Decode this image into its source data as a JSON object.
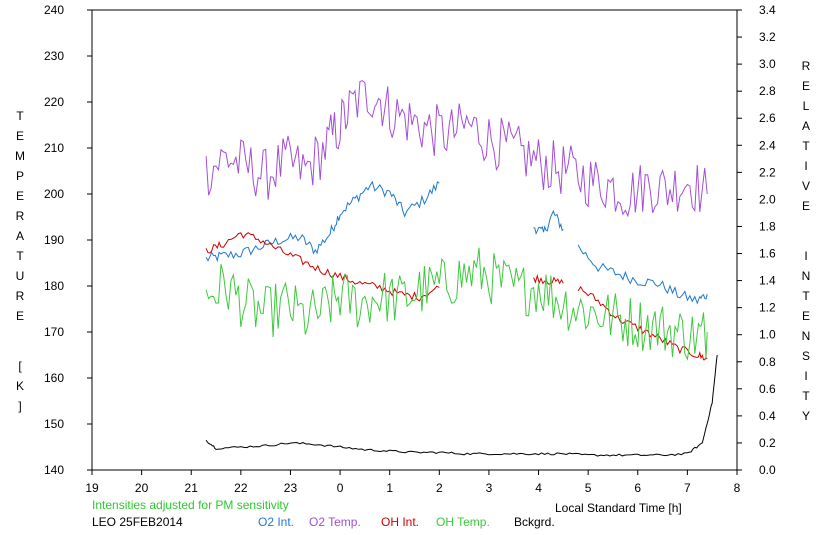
{
  "chart_data": {
    "type": "line",
    "title": "",
    "station_label": "LEO 25FEB2014",
    "note": "Intensities adjusted for PM sensitivity",
    "xlabel": "Local Standard Time [h]",
    "ylabel_left": "TEMPERATURE [K]",
    "ylabel_right": "RELATIVE INTENSITY",
    "x_ticks": [
      "19",
      "20",
      "21",
      "22",
      "23",
      "0",
      "1",
      "2",
      "3",
      "4",
      "5",
      "6",
      "7",
      "8"
    ],
    "y_left_ticks": [
      "140",
      "150",
      "160",
      "170",
      "180",
      "190",
      "200",
      "210",
      "220",
      "230",
      "240"
    ],
    "y_right_ticks": [
      "0.0",
      "0.2",
      "0.4",
      "0.6",
      "0.8",
      "1.0",
      "1.2",
      "1.4",
      "1.6",
      "1.8",
      "2.0",
      "2.2",
      "2.4",
      "2.6",
      "2.8",
      "3.0",
      "3.2",
      "3.4"
    ],
    "xlim": [
      19,
      32
    ],
    "ylim_left": [
      140,
      240
    ],
    "ylim_right": [
      0,
      3.4
    ],
    "grid": false,
    "legend_placement": "bottom",
    "colors": {
      "o2_int": "#1f78d1",
      "o2_temp": "#a24fd6",
      "oh_int": "#d00000",
      "oh_temp": "#3ec83e",
      "bckgrd": "#000000",
      "note": "#2ec82e"
    },
    "series": [
      {
        "name": "O2 Int.",
        "axis": "right",
        "x": [
          21.3,
          21.6,
          22.0,
          22.4,
          22.8,
          23.2,
          23.5,
          23.8,
          24.0,
          24.3,
          24.6,
          25.0,
          25.3,
          25.7,
          26.0
        ],
        "y": [
          1.56,
          1.58,
          1.6,
          1.65,
          1.7,
          1.72,
          1.62,
          1.75,
          1.9,
          2.0,
          2.1,
          2.05,
          1.9,
          2.0,
          2.12
        ],
        "gaps": [
          {
            "x": [
              27.9,
              28.1,
              28.3,
              28.5
            ],
            "y": [
              1.8,
              1.75,
              1.9,
              1.78
            ]
          },
          {
            "x": [
              28.8,
              29.2,
              29.6,
              30.0,
              30.4,
              30.8,
              31.2,
              31.4
            ],
            "y": [
              1.65,
              1.5,
              1.45,
              1.4,
              1.38,
              1.3,
              1.25,
              1.3
            ]
          }
        ]
      },
      {
        "name": "O2 Temp.",
        "axis": "left",
        "x": [
          21.3,
          21.7,
          22.1,
          22.5,
          22.9,
          23.3,
          23.7,
          24.0,
          24.3,
          24.7,
          25.0,
          25.4,
          25.8,
          26.2,
          26.6,
          27.0,
          27.4,
          27.8,
          28.2,
          28.6,
          29.0,
          29.4,
          29.8,
          30.2,
          30.6,
          31.0,
          31.4
        ],
        "y": [
          205,
          208,
          206,
          204,
          207,
          205,
          210,
          215,
          220,
          222,
          218,
          216,
          214,
          213,
          215,
          212,
          210,
          208,
          206,
          205,
          203,
          202,
          200,
          202,
          201,
          203,
          200
        ]
      },
      {
        "name": "OH Int.",
        "axis": "right",
        "x": [
          21.3,
          21.6,
          22.0,
          22.4,
          22.8,
          23.2,
          23.6,
          24.0,
          24.4,
          24.8,
          25.2,
          25.6,
          26.0
        ],
        "y": [
          1.62,
          1.66,
          1.75,
          1.7,
          1.62,
          1.55,
          1.48,
          1.43,
          1.38,
          1.35,
          1.3,
          1.28,
          1.35
        ],
        "gaps": [
          {
            "x": [
              27.9,
              28.2,
              28.5
            ],
            "y": [
              1.42,
              1.4,
              1.38
            ]
          },
          {
            "x": [
              28.8,
              29.2,
              29.6,
              30.0,
              30.4,
              30.8,
              31.2,
              31.4
            ],
            "y": [
              1.35,
              1.25,
              1.12,
              1.05,
              0.98,
              0.9,
              0.85,
              0.82
            ]
          }
        ]
      },
      {
        "name": "OH Temp.",
        "axis": "left",
        "x": [
          21.3,
          21.7,
          22.1,
          22.5,
          22.9,
          23.3,
          23.7,
          24.0,
          24.4,
          24.8,
          25.2,
          25.6,
          26.0,
          26.4,
          26.8,
          27.2,
          27.6,
          28.0,
          28.4,
          28.8,
          29.2,
          29.6,
          30.0,
          30.4,
          30.8,
          31.2,
          31.4
        ],
        "y": [
          178,
          180,
          176,
          174,
          176,
          173,
          175,
          178,
          176,
          178,
          177,
          179,
          180,
          182,
          183,
          181,
          179,
          180,
          177,
          175,
          174,
          173,
          172,
          171,
          170,
          169,
          170
        ]
      },
      {
        "name": "Bckgrd.",
        "axis": "right",
        "x": [
          21.3,
          21.5,
          22.0,
          22.5,
          23.0,
          23.5,
          24.0,
          24.5,
          25.0,
          25.5,
          26.0,
          26.5,
          27.0,
          27.5,
          28.0,
          28.5,
          29.0,
          29.5,
          30.0,
          30.5,
          31.0,
          31.3,
          31.5,
          31.6
        ],
        "y": [
          0.22,
          0.16,
          0.17,
          0.18,
          0.2,
          0.19,
          0.17,
          0.15,
          0.14,
          0.13,
          0.13,
          0.12,
          0.12,
          0.12,
          0.12,
          0.12,
          0.11,
          0.11,
          0.11,
          0.11,
          0.12,
          0.2,
          0.5,
          0.85
        ]
      }
    ]
  }
}
